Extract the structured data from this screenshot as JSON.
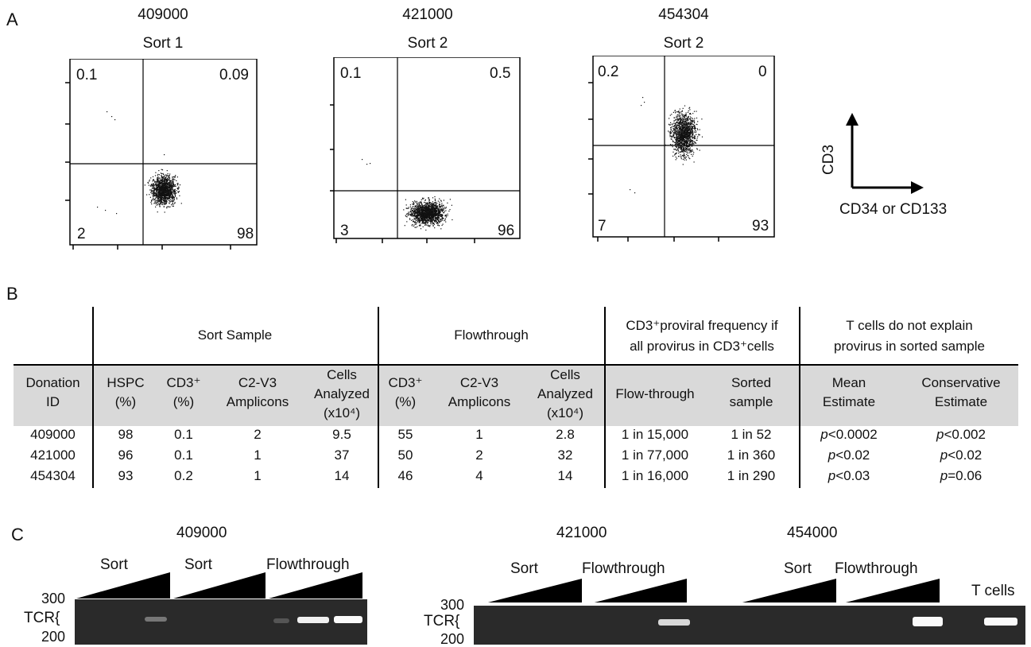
{
  "panels": {
    "a": "A",
    "b": "B",
    "c": "C"
  },
  "flow": {
    "plots": [
      {
        "donor": "409000",
        "sort": "Sort 1",
        "q_ul": "0.1",
        "q_ur": "0.09",
        "q_ll": "2",
        "q_lr": "98"
      },
      {
        "donor": "421000",
        "sort": "Sort 2",
        "q_ul": "0.1",
        "q_ur": "0.5",
        "q_ll": "3",
        "q_lr": "96"
      },
      {
        "donor": "454304",
        "sort": "Sort 2",
        "q_ul": "0.2",
        "q_ur": "0",
        "q_ll": "7",
        "q_lr": "93"
      }
    ],
    "axis_y": "CD3",
    "axis_x": "CD34 or CD133"
  },
  "table": {
    "group_sort": "Sort Sample",
    "group_flow": "Flowthrough",
    "group_freq_1": "CD3⁺proviral frequency if",
    "group_freq_2": "all provirus in CD3⁺cells",
    "group_t_1": "T cells do not explain",
    "group_t_2": "provirus in sorted sample",
    "headers": {
      "donation_1": "Donation",
      "donation_2": "ID",
      "hspc_1": "HSPC",
      "hspc_2": "(%)",
      "cd3_1": "CD3⁺",
      "cd3_2": "(%)",
      "c2v3_1": "C2-V3",
      "c2v3_2": "Amplicons",
      "cells_1": "Cells",
      "cells_2": "Analyzed",
      "cells_3": "(x10⁴)",
      "fcd3_1": "CD3⁺",
      "fcd3_2": "(%)",
      "fc2v3_1": "C2-V3",
      "fc2v3_2": "Amplicons",
      "fcells_1": "Cells",
      "fcells_2": "Analyzed",
      "fcells_3": "(x10⁴)",
      "flowthrough": "Flow-through",
      "sorted_1": "Sorted",
      "sorted_2": "sample",
      "mean_1": "Mean",
      "mean_2": "Estimate",
      "cons_1": "Conservative",
      "cons_2": "Estimate"
    },
    "rows": [
      {
        "id": "409000",
        "hspc": "98",
        "cd3": "0.1",
        "amp": "2",
        "cells": "9.5",
        "fcd3": "55",
        "famp": "1",
        "fcells": "2.8",
        "ft": "1 in 15,000",
        "ss": "1 in 52",
        "mean_p": "p",
        "mean_v": "<0.0002",
        "cons_p": "p",
        "cons_v": "<0.002"
      },
      {
        "id": "421000",
        "hspc": "96",
        "cd3": "0.1",
        "amp": "1",
        "cells": "37",
        "fcd3": "50",
        "famp": "2",
        "fcells": "32",
        "ft": "1 in 77,000",
        "ss": "1 in 360",
        "mean_p": "p",
        "mean_v": "<0.02",
        "cons_p": "p",
        "cons_v": "<0.02"
      },
      {
        "id": "454304",
        "hspc": "93",
        "cd3": "0.2",
        "amp": "1",
        "cells": "14",
        "fcd3": "46",
        "famp": "4",
        "fcells": "14",
        "ft": "1 in 16,000",
        "ss": "1 in 290",
        "mean_p": "p",
        "mean_v": "<0.03",
        "cons_p": "p",
        "cons_v": "=0.06"
      }
    ]
  },
  "gels": {
    "left_title": "409000",
    "mid_title": "421000",
    "right_title": "454000",
    "sort": "Sort",
    "flowthrough": "Flowthrough",
    "tcells": "T cells",
    "tcr": "TCR{",
    "m300": "300",
    "m200": "200"
  },
  "colors": {
    "shade": "#d9d9d9",
    "gel": "#2a2a2a",
    "band": "#f2f2f2"
  }
}
